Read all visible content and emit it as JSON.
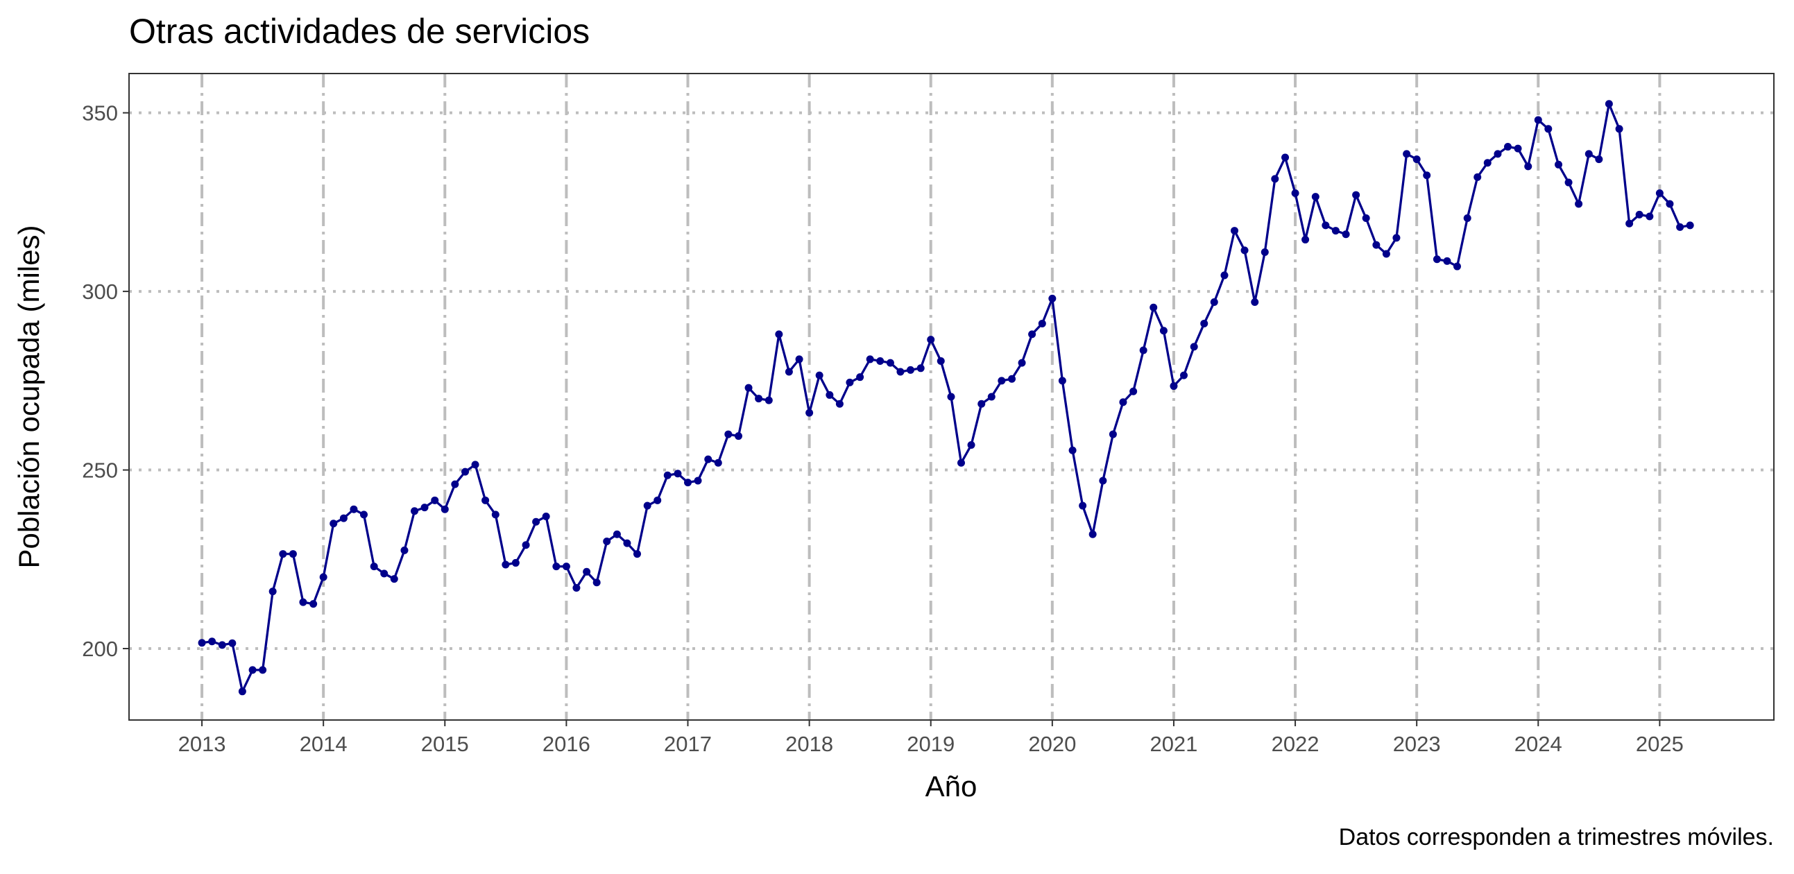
{
  "chart_data": {
    "type": "line",
    "title": "Otras actividades de servicios",
    "x_label": "Año",
    "y_label": "Población ocupada (miles)",
    "caption": "Datos corresponden a trimestres móviles.",
    "color": "#00008b",
    "grid": true,
    "xlim": [
      2012.4,
      2025.94
    ],
    "ylim": [
      180,
      361
    ],
    "xticks": [
      2013,
      2014,
      2015,
      2016,
      2017,
      2018,
      2019,
      2020,
      2021,
      2022,
      2023,
      2024,
      2025
    ],
    "yticks": [
      200,
      250,
      300,
      350
    ],
    "x": [
      2013,
      2013.083,
      2013.167,
      2013.25,
      2013.333,
      2013.417,
      2013.5,
      2013.583,
      2013.667,
      2013.75,
      2013.833,
      2013.917,
      2014,
      2014.083,
      2014.167,
      2014.25,
      2014.333,
      2014.417,
      2014.5,
      2014.583,
      2014.667,
      2014.75,
      2014.833,
      2014.917,
      2015,
      2015.083,
      2015.167,
      2015.25,
      2015.333,
      2015.417,
      2015.5,
      2015.583,
      2015.667,
      2015.75,
      2015.833,
      2015.917,
      2016,
      2016.083,
      2016.167,
      2016.25,
      2016.333,
      2016.417,
      2016.5,
      2016.583,
      2016.667,
      2016.75,
      2016.833,
      2016.917,
      2017,
      2017.083,
      2017.167,
      2017.25,
      2017.333,
      2017.417,
      2017.5,
      2017.583,
      2017.667,
      2017.75,
      2017.833,
      2017.917,
      2018,
      2018.083,
      2018.167,
      2018.25,
      2018.333,
      2018.417,
      2018.5,
      2018.583,
      2018.667,
      2018.75,
      2018.833,
      2018.917,
      2019,
      2019.083,
      2019.167,
      2019.25,
      2019.333,
      2019.417,
      2019.5,
      2019.583,
      2019.667,
      2019.75,
      2019.833,
      2019.917,
      2020,
      2020.083,
      2020.167,
      2020.25,
      2020.333,
      2020.417,
      2020.5,
      2020.583,
      2020.667,
      2020.75,
      2020.833,
      2020.917,
      2021,
      2021.083,
      2021.167,
      2021.25,
      2021.333,
      2021.417,
      2021.5,
      2021.583,
      2021.667,
      2021.75,
      2021.833,
      2021.917,
      2022,
      2022.083,
      2022.167,
      2022.25,
      2022.333,
      2022.417,
      2022.5,
      2022.583,
      2022.667,
      2022.75,
      2022.833,
      2022.917,
      2023,
      2023.083,
      2023.167,
      2023.25,
      2023.333,
      2023.417,
      2023.5,
      2023.583,
      2023.667,
      2023.75,
      2023.833,
      2023.917,
      2024,
      2024.083,
      2024.167,
      2024.25,
      2024.333,
      2024.417,
      2024.5,
      2024.583,
      2024.667,
      2024.75,
      2024.833,
      2024.917,
      2025,
      2025.083,
      2025.167,
      2025.25
    ],
    "values": [
      201.6,
      202,
      201,
      201.5,
      188,
      194,
      194,
      216,
      226.5,
      226.5,
      213,
      212.5,
      220,
      235,
      236.5,
      239,
      237.5,
      223,
      221,
      219.5,
      227.5,
      238.5,
      239.5,
      241.5,
      239,
      246,
      249.5,
      251.5,
      241.5,
      237.5,
      223.5,
      224,
      229,
      235.5,
      237,
      223,
      223,
      217,
      221.5,
      218.5,
      230,
      232,
      229.5,
      226.5,
      240,
      241.5,
      248.5,
      249,
      246.5,
      247,
      253,
      252,
      260,
      259.5,
      273,
      270,
      269.5,
      288,
      277.5,
      281,
      266,
      276.5,
      271,
      268.5,
      274.5,
      276,
      281,
      280.5,
      280,
      277.5,
      278,
      278.5,
      286.5,
      280.5,
      270.5,
      252,
      257,
      268.5,
      270.5,
      275,
      275.5,
      280,
      288,
      291,
      298,
      275,
      255.5,
      240,
      232,
      247,
      260,
      269,
      272,
      283.5,
      295.5,
      289,
      273.5,
      276.5,
      284.5,
      291,
      297,
      304.5,
      317,
      311.5,
      297,
      311,
      331.5,
      337.5,
      327.5,
      314.5,
      326.5,
      318.5,
      317,
      316,
      327,
      320.5,
      313,
      310.5,
      315,
      338.5,
      337,
      332.5,
      309,
      308.5,
      307,
      320.5,
      332,
      336,
      338.5,
      340.5,
      340,
      335,
      348,
      345.5,
      335.5,
      330.5,
      324.5,
      338.5,
      337,
      352.5,
      345.5,
      319,
      321.5,
      321,
      327.5,
      324.5,
      318,
      318.5
    ]
  }
}
